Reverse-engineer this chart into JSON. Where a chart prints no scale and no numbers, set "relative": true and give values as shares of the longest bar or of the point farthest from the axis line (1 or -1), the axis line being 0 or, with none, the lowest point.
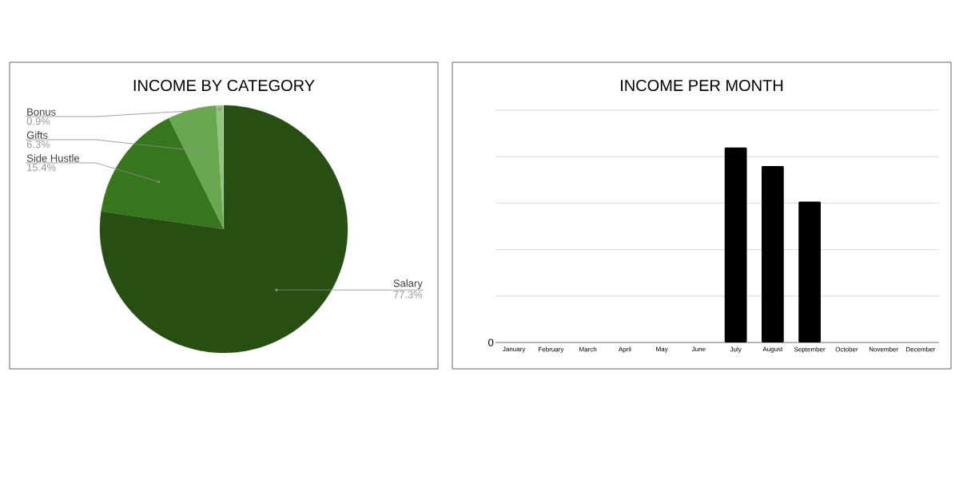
{
  "chart_data": [
    {
      "type": "pie",
      "title": "INCOME BY CATEGORY",
      "categories": [
        "Salary",
        "Side Hustle",
        "Gifts",
        "Bonus"
      ],
      "values": [
        77.3,
        15.4,
        6.3,
        0.9
      ],
      "colors": [
        "#274e13",
        "#38761d",
        "#6aa84f",
        "#93c47d"
      ],
      "value_labels": [
        "77.3%",
        "15.4%",
        "6.3%",
        "0.9%"
      ]
    },
    {
      "type": "bar",
      "title": "INCOME PER MONTH",
      "categories": [
        "January",
        "February",
        "March",
        "April",
        "May",
        "June",
        "July",
        "August",
        "September",
        "October",
        "November",
        "December"
      ],
      "values": [
        0,
        0,
        0,
        0,
        0,
        0,
        1,
        0.905,
        0.722,
        0,
        0,
        0
      ],
      "color": "#000000",
      "relative": true,
      "annotations": [
        "0"
      ],
      "grid": "y"
    }
  ]
}
